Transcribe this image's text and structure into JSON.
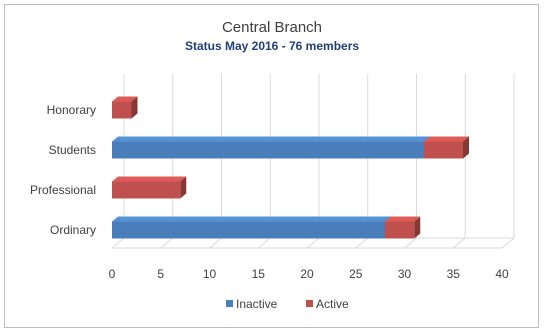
{
  "chart_data": {
    "type": "bar",
    "orientation": "horizontal",
    "stacked": true,
    "style": "3d",
    "title": "Central Branch",
    "subtitle": "Status May 2016 - 76 members",
    "categories": [
      "Honorary",
      "Students",
      "Professional",
      "Ordinary"
    ],
    "series": [
      {
        "name": "Inactive",
        "color": "#4a7ebb",
        "values": [
          0,
          32,
          0,
          28
        ]
      },
      {
        "name": "Active",
        "color": "#c0504d",
        "values": [
          2,
          4,
          7,
          3
        ]
      }
    ],
    "xlim": [
      0,
      40
    ],
    "xticks": [
      0,
      5,
      10,
      15,
      20,
      25,
      30,
      35,
      40
    ],
    "grid": true,
    "legend_position": "bottom"
  }
}
